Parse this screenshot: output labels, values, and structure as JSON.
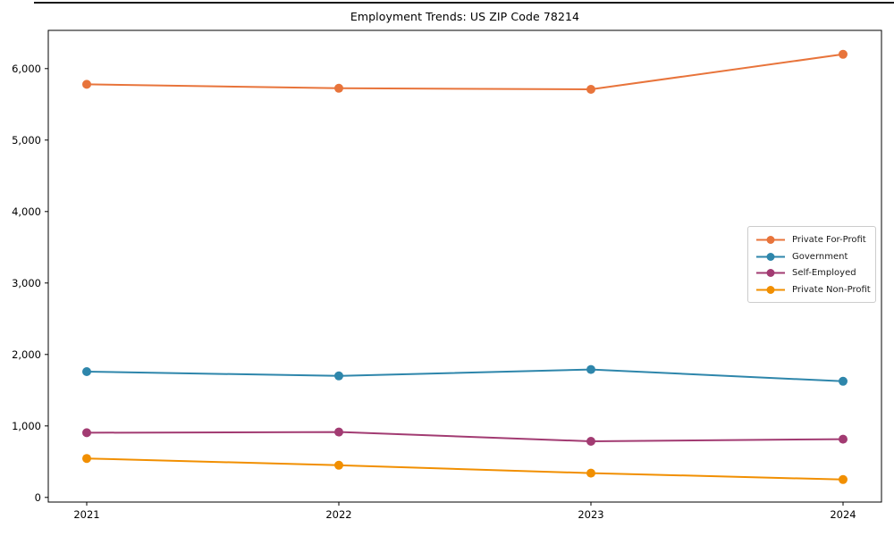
{
  "figure": {
    "title": "Employment Trends: US ZIP Code 78214"
  },
  "chart_data": {
    "type": "line",
    "title": "Employment Trends: US ZIP Code 78214",
    "xlabel": "",
    "ylabel": "",
    "categories": [
      "2021",
      "2022",
      "2023",
      "2024"
    ],
    "series": [
      {
        "name": "Private For-Profit",
        "color": "#E8743B",
        "values": [
          5780,
          5725,
          5710,
          6200
        ]
      },
      {
        "name": "Government",
        "color": "#2E86AB",
        "values": [
          1760,
          1700,
          1790,
          1625
        ]
      },
      {
        "name": "Self-Employed",
        "color": "#A23B72",
        "values": [
          905,
          915,
          785,
          815
        ]
      },
      {
        "name": "Private Non-Profit",
        "color": "#F18F01",
        "values": [
          545,
          450,
          340,
          250
        ]
      }
    ],
    "ylim": [
      -65,
      6535
    ],
    "yticks": [
      0,
      1000,
      2000,
      3000,
      4000,
      5000,
      6000
    ],
    "ytick_labels": [
      "0",
      "1,000",
      "2,000",
      "3,000",
      "4,000",
      "5,000",
      "6,000"
    ],
    "grid": false,
    "legend_position": "center-right",
    "legend_entries": [
      "Private For-Profit",
      "Government",
      "Self-Employed",
      "Private Non-Profit"
    ]
  }
}
